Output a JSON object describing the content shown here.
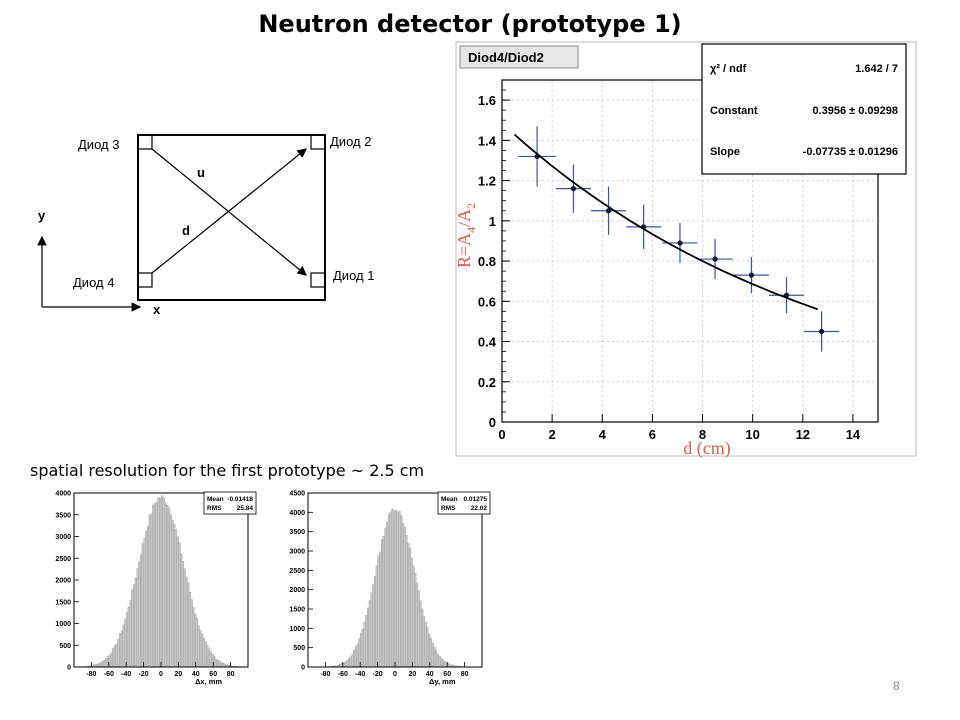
{
  "slide": {
    "title": "Neutron detector (prototype 1)",
    "subtitle": "spatial resolution for the first prototype ~ 2.5 cm",
    "page_number": "8"
  },
  "diagram": {
    "diode3": "Диод 3",
    "diode2": "Диод 2",
    "diode4": "Диод 4",
    "diode1": "Диод 1",
    "u_label": "u",
    "d_label": "d",
    "y_axis": "y",
    "x_axis": "x"
  },
  "chart_data": [
    {
      "type": "scatter",
      "title": "Diod4/Diod2",
      "xlabel": "d (cm)",
      "ylabel": "R=A",
      "ylabel_sub4": "4",
      "ylabel_slash": "/A",
      "ylabel_sub2": "2",
      "xlim": [
        0,
        15
      ],
      "ylim": [
        0,
        1.7
      ],
      "xticks": [
        0,
        2,
        4,
        6,
        8,
        10,
        12,
        14
      ],
      "yticks": [
        0,
        0.2,
        0.4,
        0.6,
        0.8,
        1,
        1.2,
        1.4,
        1.6
      ],
      "ytick_labels": [
        "0",
        "0.2",
        "0.4",
        "0.6",
        "0.8",
        "1",
        "1.2",
        "1.4",
        "1.6"
      ],
      "grid": true,
      "points": [
        {
          "x": 1.4,
          "y": 1.32,
          "xerr": 0.75,
          "yerr": 0.15
        },
        {
          "x": 2.85,
          "y": 1.16,
          "xerr": 0.7,
          "yerr": 0.12
        },
        {
          "x": 4.25,
          "y": 1.05,
          "xerr": 0.7,
          "yerr": 0.12
        },
        {
          "x": 5.65,
          "y": 0.97,
          "xerr": 0.7,
          "yerr": 0.11
        },
        {
          "x": 7.1,
          "y": 0.89,
          "xerr": 0.7,
          "yerr": 0.1
        },
        {
          "x": 8.5,
          "y": 0.81,
          "xerr": 0.7,
          "yerr": 0.1
        },
        {
          "x": 9.95,
          "y": 0.73,
          "xerr": 0.7,
          "yerr": 0.09
        },
        {
          "x": 11.35,
          "y": 0.63,
          "xerr": 0.7,
          "yerr": 0.09
        },
        {
          "x": 12.75,
          "y": 0.45,
          "xerr": 0.7,
          "yerr": 0.1
        }
      ],
      "fit": {
        "x_range": [
          0.5,
          12.6
        ]
      },
      "stats": [
        {
          "name": "χ² / ndf",
          "value": "1.642 / 7"
        },
        {
          "name": "Constant",
          "value": "0.3956 ± 0.09298"
        },
        {
          "name": "Slope",
          "value": "-0.07735 ± 0.01296"
        }
      ]
    },
    {
      "type": "bar",
      "title": "",
      "xlabel": "Δx, mm",
      "xlim": [
        -100,
        100
      ],
      "ylim": [
        0,
        4000
      ],
      "xticks": [
        -80,
        -60,
        -40,
        -20,
        0,
        20,
        40,
        60,
        80
      ],
      "yticks": [
        0,
        500,
        1000,
        1500,
        2000,
        2500,
        3000,
        3500,
        4000
      ],
      "mean": -0.01418,
      "rms": 25.84,
      "peak": 3900,
      "stats": [
        {
          "name": "Mean",
          "value": "-0.01418"
        },
        {
          "name": "RMS",
          "value": "25.84"
        }
      ]
    },
    {
      "type": "bar",
      "title": "",
      "xlabel": "Δy, mm",
      "xlim": [
        -100,
        100
      ],
      "ylim": [
        0,
        4500
      ],
      "xticks": [
        -80,
        -60,
        -40,
        -20,
        0,
        20,
        40,
        60,
        80
      ],
      "yticks": [
        0,
        500,
        1000,
        1500,
        2000,
        2500,
        3000,
        3500,
        4000,
        4500
      ],
      "mean": 0.01275,
      "rms": 22.02,
      "peak": 4100,
      "stats": [
        {
          "name": "Mean",
          "value": "0.01275"
        },
        {
          "name": "RMS",
          "value": "22.02"
        }
      ]
    }
  ]
}
